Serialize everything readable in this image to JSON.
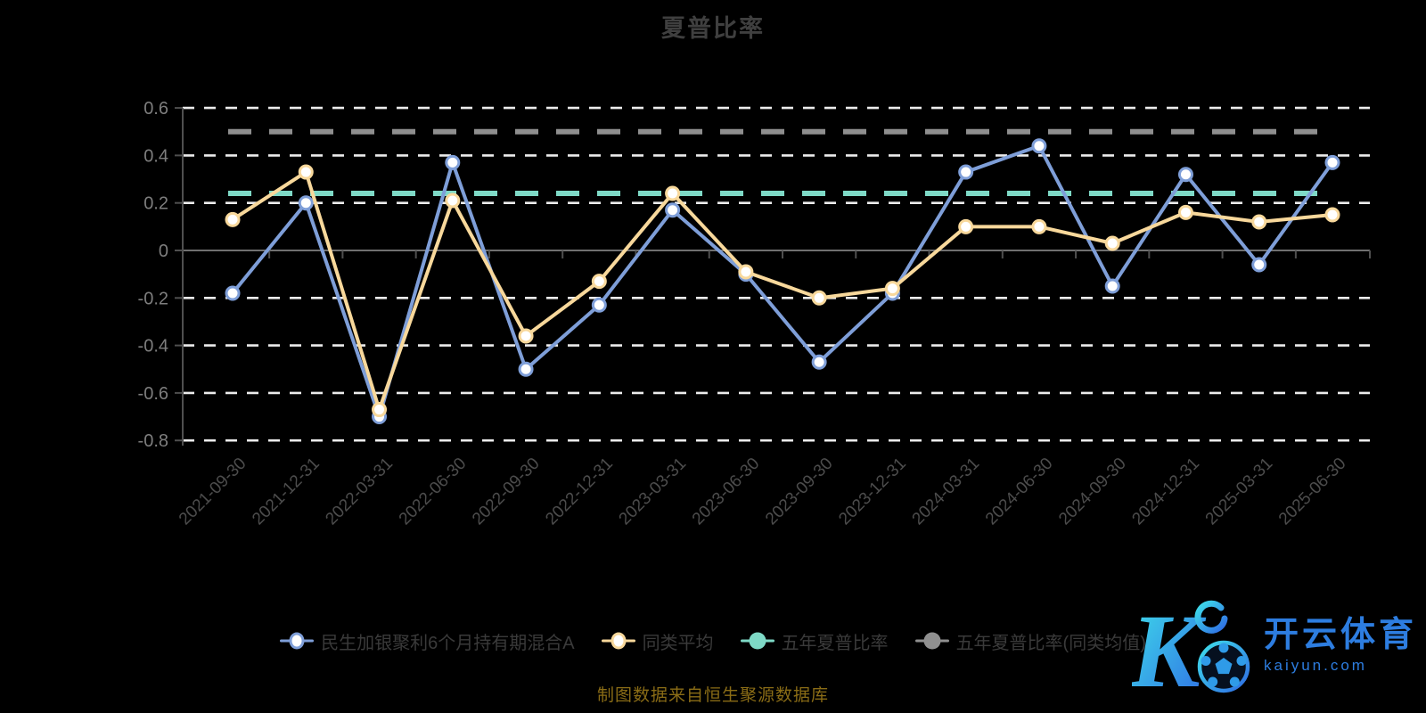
{
  "page": {
    "title": "夏普比率",
    "footer": "制图数据来自恒生聚源数据库"
  },
  "chart_data": {
    "type": "line",
    "title": "夏普比率",
    "categories": [
      "2021-09-30",
      "2021-12-31",
      "2022-03-31",
      "2022-06-30",
      "2022-09-30",
      "2022-12-31",
      "2023-03-31",
      "2023-06-30",
      "2023-09-30",
      "2023-12-31",
      "2024-03-31",
      "2024-06-30",
      "2024-09-30",
      "2024-12-31",
      "2025-03-31",
      "2025-06-30"
    ],
    "series": [
      {
        "name": "民生加银聚利6个月持有期混合A",
        "color": "#7e9ed8",
        "marker": "hollow-circle",
        "values": [
          -0.18,
          0.2,
          -0.7,
          0.37,
          -0.5,
          -0.23,
          0.17,
          -0.1,
          -0.47,
          -0.18,
          0.33,
          0.44,
          -0.15,
          0.32,
          -0.06,
          0.37
        ]
      },
      {
        "name": "同类平均",
        "color": "#f8d89b",
        "marker": "hollow-circle",
        "values": [
          0.13,
          0.33,
          -0.67,
          0.21,
          -0.36,
          -0.13,
          0.24,
          -0.09,
          -0.2,
          -0.16,
          0.1,
          0.1,
          0.03,
          0.16,
          0.12,
          0.15
        ]
      }
    ],
    "ref_lines": [
      {
        "name": "五年夏普比率",
        "value": 0.24,
        "color": "#7ed9c6",
        "style": "dashed"
      },
      {
        "name": "五年夏普比率(同类均值)",
        "value": 0.5,
        "color": "#8f8f8f",
        "style": "dashed"
      }
    ],
    "legend": [
      {
        "label": "民生加银聚利6个月持有期混合A",
        "color": "#7e9ed8",
        "marker": "hollow-circle"
      },
      {
        "label": "同类平均",
        "color": "#f8d89b",
        "marker": "hollow-circle"
      },
      {
        "label": "五年夏普比率",
        "color": "#7ed9c6",
        "marker": "solid-circle"
      },
      {
        "label": "五年夏普比率(同类均值)",
        "color": "#8f8f8f",
        "marker": "solid-circle"
      }
    ],
    "y_ticks": [
      0.6,
      0.4,
      0.2,
      0,
      -0.2,
      -0.4,
      -0.6,
      -0.8
    ],
    "ylim": [
      -0.8,
      0.6
    ],
    "grid": "horizontal-white-dashed",
    "legend_position": "bottom",
    "x_label_rotation": 45
  },
  "watermark": {
    "logo_letter": "K",
    "logo_icon": "soccer-ball",
    "brand": "开云体育",
    "domain": "kaiyun.com",
    "color": "#2d7de0"
  },
  "colors": {
    "background": "#000000",
    "title_text": "#3f3f3f",
    "grid_line": "#ececec",
    "axis_line": "#4f4f4f",
    "zero_line": "#6f6f6f",
    "y_label": "#7e7e7e",
    "x_label": "#4c4c4c",
    "legend_text": "#3a3a3a",
    "footer_text": "#8a6c16",
    "watermark_blue": "#2d7de0"
  }
}
